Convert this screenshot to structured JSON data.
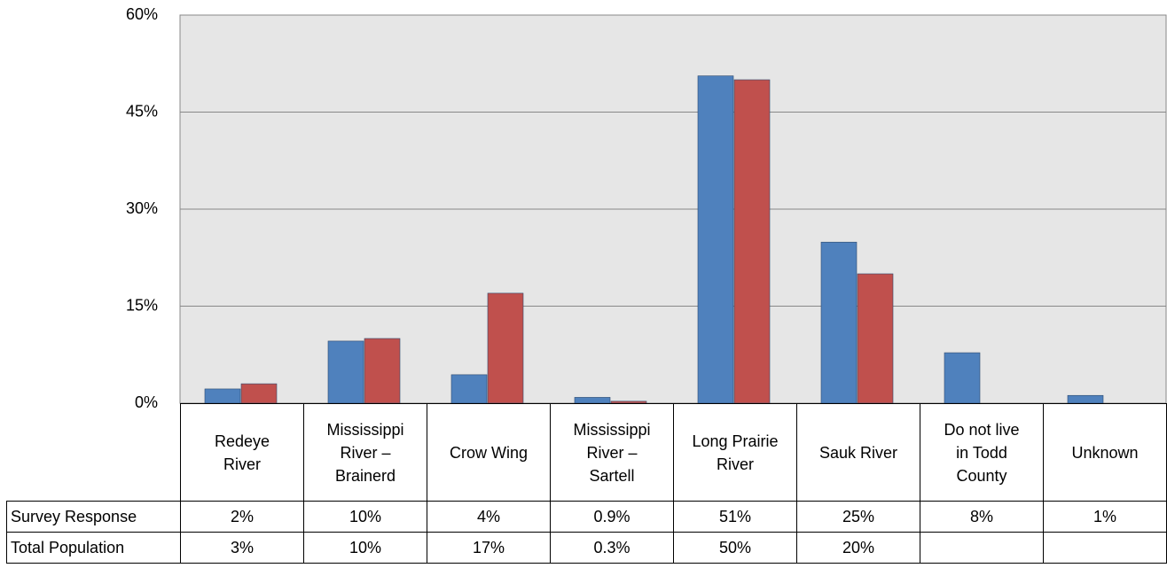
{
  "chart_data": {
    "type": "bar",
    "categories": [
      "Redeye River",
      "Mississippi River – Brainerd",
      "Crow Wing",
      "Mississippi River – Sartell",
      "Long Prairie River",
      "Sauk River",
      "Do not live in Todd County",
      "Unknown"
    ],
    "series": [
      {
        "name": "Survey Response",
        "color": "#4f81bd",
        "values": [
          2.2,
          9.6,
          4.4,
          0.9,
          50.6,
          24.9,
          7.8,
          1.2
        ],
        "value_labels": [
          "2%",
          "10%",
          "4%",
          "0.9%",
          "51%",
          "25%",
          "8%",
          "1%"
        ]
      },
      {
        "name": "Total Population",
        "color": "#c0504d",
        "values": [
          3,
          10,
          17,
          0.3,
          50,
          20,
          null,
          null
        ],
        "value_labels": [
          "3%",
          "10%",
          "17%",
          "0.3%",
          "50%",
          "20%",
          null,
          null
        ]
      }
    ],
    "ylim": [
      0,
      60
    ],
    "yticks": [
      {
        "value": 0,
        "label": "0%"
      },
      {
        "value": 15,
        "label": "15%"
      },
      {
        "value": 30,
        "label": "30%"
      },
      {
        "value": 45,
        "label": "45%"
      },
      {
        "value": 60,
        "label": "60%"
      }
    ],
    "grid": true
  }
}
